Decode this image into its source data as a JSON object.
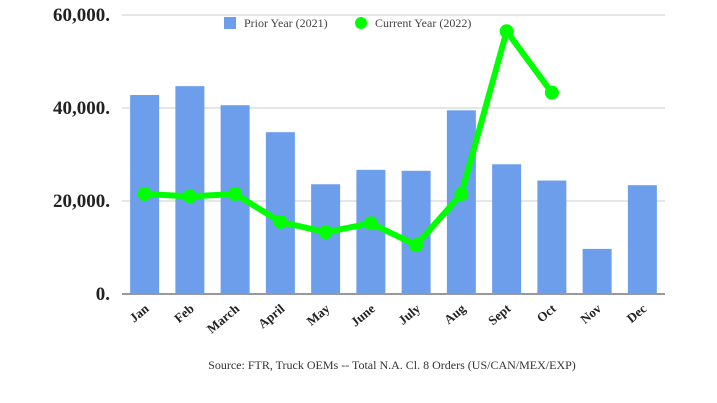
{
  "chart_data": {
    "type": "bar+line",
    "categories": [
      "Jan",
      "Feb",
      "March",
      "April",
      "May",
      "June",
      "July",
      "Aug",
      "Sept",
      "Oct",
      "Nov",
      "Dec"
    ],
    "series": [
      {
        "name": "Prior Year (2021)",
        "type": "bar",
        "color": "#6d9eeb",
        "values": [
          42800,
          44700,
          40600,
          34800,
          23600,
          26700,
          26500,
          39500,
          27900,
          24400,
          9700,
          23400
        ]
      },
      {
        "name": "Current Year (2022)",
        "type": "line",
        "color": "#00ff00",
        "values": [
          21500,
          21000,
          21500,
          15500,
          13300,
          15200,
          10500,
          21500,
          56500,
          43300,
          null,
          null
        ]
      }
    ],
    "ylim": [
      0,
      60000
    ],
    "y_ticks": [
      {
        "value": 0,
        "label": "0."
      },
      {
        "value": 20000,
        "label": "20,000."
      },
      {
        "value": 40000,
        "label": "40,000."
      },
      {
        "value": 60000,
        "label": "60,000."
      }
    ],
    "grid": true,
    "legend_position": "top",
    "caption": "Source: FTR, Truck OEMs -- Total N.A. Cl. 8 Orders (US/CAN/MEX/EXP)"
  }
}
